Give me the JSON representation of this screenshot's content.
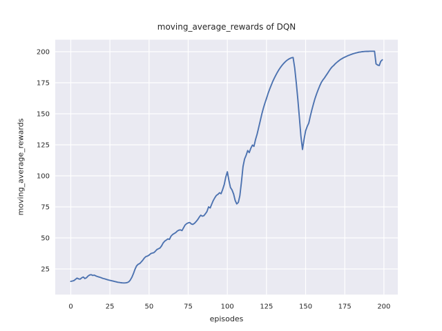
{
  "chart_data": {
    "type": "line",
    "title": "moving_average_rewards of DQN",
    "xlabel": "episodes",
    "ylabel": "moving_average_rewards",
    "x_ticks": [
      0,
      25,
      50,
      75,
      100,
      125,
      150,
      175,
      200
    ],
    "y_ticks": [
      25,
      50,
      75,
      100,
      125,
      150,
      175,
      200
    ],
    "xlim": [
      -9.93,
      208.88
    ],
    "ylim": [
      4.33,
      209.67
    ],
    "grid": true,
    "legend_position": "none",
    "style": {
      "panel_bg": "#eaeaf2",
      "grid_color": "#ffffff",
      "line_color": "#4c72b0",
      "text_color": "#262626",
      "line_width": 1.9,
      "tick_font_size": 10
    },
    "series": [
      {
        "name": "moving_average_rewards",
        "x_start": 0,
        "x_step": 1,
        "values": [
          15.0,
          15.3,
          15.6,
          16.6,
          17.6,
          17.0,
          16.8,
          17.9,
          18.5,
          17.3,
          17.9,
          19.2,
          20.1,
          20.4,
          19.8,
          20.0,
          19.4,
          18.9,
          18.5,
          18.1,
          17.6,
          17.2,
          16.9,
          16.5,
          16.1,
          15.8,
          15.5,
          15.2,
          14.9,
          14.6,
          14.3,
          14.1,
          13.9,
          13.8,
          13.7,
          13.8,
          14.0,
          14.6,
          16.0,
          18.2,
          21.2,
          24.6,
          27.4,
          28.7,
          29.3,
          30.6,
          32.1,
          33.8,
          35.0,
          35.4,
          36.1,
          37.3,
          37.8,
          38.1,
          39.2,
          40.6,
          41.3,
          41.9,
          43.6,
          46.0,
          47.4,
          48.3,
          49.2,
          48.8,
          51.4,
          52.7,
          53.5,
          54.3,
          55.5,
          56.2,
          56.5,
          55.9,
          58.1,
          60.4,
          61.5,
          62.1,
          62.4,
          61.2,
          60.9,
          61.8,
          63.1,
          64.6,
          66.6,
          68.3,
          67.5,
          67.9,
          69.5,
          71.3,
          75.0,
          74.1,
          77.1,
          80.1,
          82.4,
          84.2,
          85.1,
          86.4,
          85.6,
          89.0,
          93.0,
          99.0,
          103.3,
          96.2,
          90.6,
          88.6,
          85.3,
          80.2,
          77.4,
          78.6,
          84.0,
          95.0,
          107.5,
          113.5,
          116.6,
          120.4,
          118.7,
          122.3,
          124.8,
          123.7,
          129.2,
          133.6,
          138.8,
          144.2,
          149.8,
          154.4,
          158.6,
          162.4,
          166.3,
          169.8,
          173.0,
          176.0,
          178.7,
          181.2,
          183.5,
          185.6,
          187.5,
          189.1,
          190.6,
          191.9,
          193.0,
          193.9,
          194.6,
          195.1,
          195.4,
          187.0,
          175.5,
          162.0,
          147.0,
          132.0,
          121.2,
          129.5,
          136.2,
          139.8,
          142.5,
          148.0,
          153.2,
          158.0,
          162.3,
          166.0,
          169.4,
          172.4,
          175.2,
          177.2,
          178.8,
          180.7,
          182.6,
          184.5,
          186.4,
          187.9,
          189.0,
          190.4,
          191.5,
          192.5,
          193.5,
          194.3,
          195.0,
          195.6,
          196.2,
          196.8,
          197.3,
          197.8,
          198.2,
          198.6,
          199.0,
          199.3,
          199.6,
          199.8,
          200.0,
          200.1,
          200.2,
          200.3,
          200.3,
          200.4,
          200.4,
          200.4,
          200.4,
          190.2,
          189.3,
          188.9,
          192.2,
          193.5
        ]
      }
    ]
  }
}
